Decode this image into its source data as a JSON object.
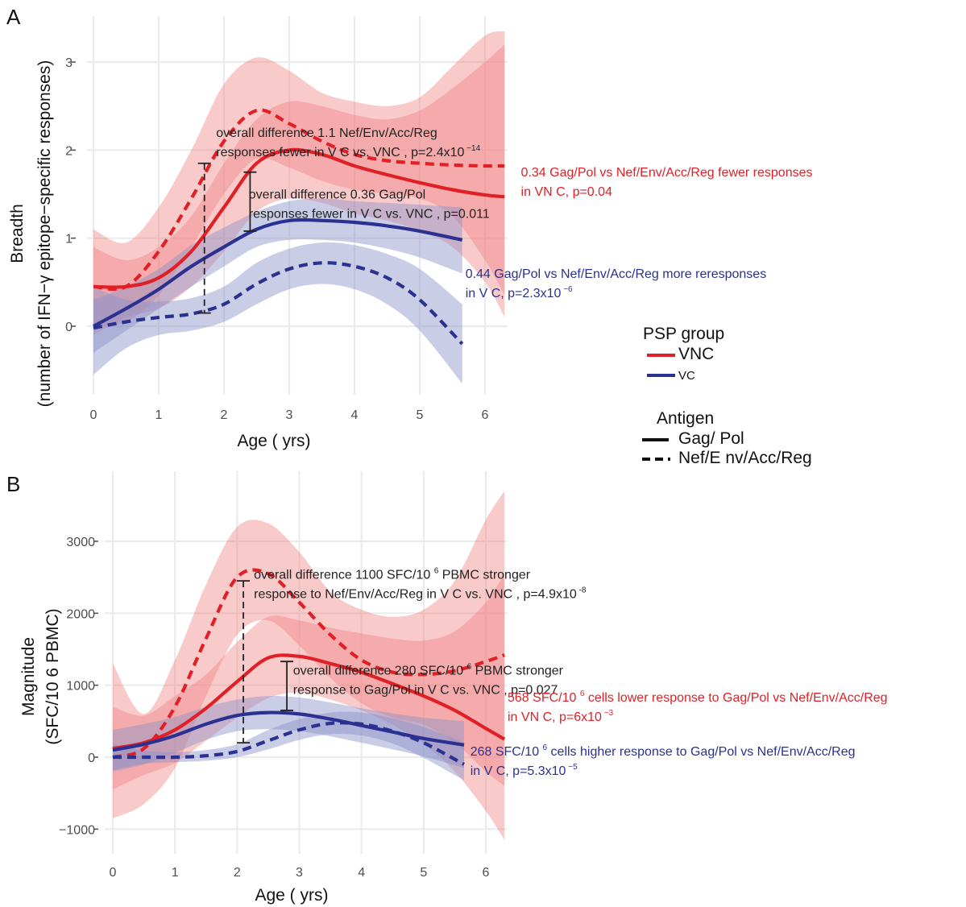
{
  "panel_labels": {
    "a": "A",
    "b": "B"
  },
  "colors": {
    "vnc": "#e01f26",
    "vc": "#2b3190",
    "vnc_band": "#f08080",
    "vc_band": "#8a90c8",
    "grid": "#ebebeb",
    "axis_text": "#4d4d4d",
    "bracket": "#222222"
  },
  "legend": {
    "group_title": "PSP group",
    "group_items": [
      {
        "label": "VNC",
        "color": "#e01f26"
      },
      {
        "label": "VC",
        "color": "#2b3190"
      }
    ],
    "antigen_title": "Antigen",
    "antigen_items": [
      {
        "label": "Gag/ Pol",
        "dash": "solid"
      },
      {
        "label": "Nef/E nv/Acc/Reg",
        "dash": "dashed"
      }
    ]
  },
  "chart_data": [
    {
      "type": "line",
      "panel": "A",
      "xlabel": "Age ( yrs)",
      "ylabel": [
        "Breadth",
        "(number of IFN−γ epitope−specific responses)"
      ],
      "xlim": [
        -0.1,
        6.3
      ],
      "ylim": [
        -0.8,
        3.4
      ],
      "x_ticks": [
        0,
        1,
        2,
        3,
        4,
        5,
        6
      ],
      "y_ticks": [
        0,
        1,
        2,
        3
      ],
      "grid": true,
      "series": [
        {
          "name": "VNC",
          "antigen": "Gag/Pol",
          "color": "#e01f26",
          "dash": "solid",
          "x": [
            0,
            0.5,
            1,
            1.5,
            2,
            2.5,
            3,
            3.5,
            4,
            4.5,
            5,
            5.5,
            6,
            6.3
          ],
          "y": [
            0.45,
            0.45,
            0.55,
            0.85,
            1.35,
            1.85,
            2.0,
            1.95,
            1.82,
            1.72,
            1.63,
            1.55,
            1.49,
            1.47
          ],
          "band_lower": [
            -0.1,
            0.1,
            0.2,
            0.45,
            0.85,
            1.3,
            1.45,
            1.4,
            1.28,
            1.2,
            1.08,
            0.9,
            0.5,
            0.1
          ],
          "band_upper": [
            0.9,
            0.75,
            0.9,
            1.25,
            1.85,
            2.35,
            2.55,
            2.5,
            2.4,
            2.35,
            2.45,
            2.7,
            3.0,
            3.2
          ]
        },
        {
          "name": "VNC",
          "antigen": "Nef/Env/Acc/Reg",
          "color": "#e01f26",
          "dash": "dashed",
          "x": [
            0,
            0.5,
            1,
            1.5,
            2,
            2.5,
            3,
            3.5,
            4,
            4.5,
            5,
            5.5,
            6,
            6.3
          ],
          "y": [
            0.45,
            0.45,
            0.85,
            1.45,
            2.1,
            2.45,
            2.3,
            2.1,
            1.95,
            1.88,
            1.85,
            1.83,
            1.82,
            1.82
          ],
          "band_lower": [
            0.0,
            0.05,
            0.35,
            0.9,
            1.5,
            1.9,
            1.8,
            1.65,
            1.55,
            1.5,
            1.45,
            1.25,
            0.75,
            0.35
          ],
          "band_upper": [
            1.1,
            0.95,
            1.35,
            2.0,
            2.75,
            3.05,
            2.9,
            2.65,
            2.55,
            2.5,
            2.6,
            2.95,
            3.3,
            3.35
          ]
        },
        {
          "name": "VC",
          "antigen": "Gag/Pol",
          "color": "#2b3190",
          "dash": "solid",
          "x": [
            0,
            0.5,
            1,
            1.5,
            2,
            2.5,
            3,
            3.5,
            4,
            4.5,
            5,
            5.65
          ],
          "y": [
            0.0,
            0.2,
            0.42,
            0.68,
            0.9,
            1.1,
            1.2,
            1.2,
            1.18,
            1.14,
            1.08,
            0.98
          ],
          "band_lower": [
            -0.3,
            -0.05,
            0.2,
            0.45,
            0.68,
            0.9,
            0.98,
            0.98,
            0.95,
            0.88,
            0.78,
            0.6
          ],
          "band_upper": [
            0.3,
            0.45,
            0.65,
            0.92,
            1.12,
            1.3,
            1.42,
            1.45,
            1.42,
            1.4,
            1.38,
            1.35
          ]
        },
        {
          "name": "VC",
          "antigen": "Nef/Env/Acc/Reg",
          "color": "#2b3190",
          "dash": "dashed",
          "x": [
            0,
            0.5,
            1,
            1.5,
            2,
            2.5,
            3,
            3.5,
            4,
            4.5,
            5,
            5.65
          ],
          "y": [
            -0.02,
            0.05,
            0.1,
            0.14,
            0.25,
            0.48,
            0.65,
            0.72,
            0.68,
            0.55,
            0.3,
            -0.2
          ],
          "band_lower": [
            -0.55,
            -0.25,
            -0.1,
            -0.05,
            0.05,
            0.25,
            0.42,
            0.48,
            0.42,
            0.25,
            -0.05,
            -0.65
          ],
          "band_upper": [
            0.45,
            0.3,
            0.28,
            0.32,
            0.45,
            0.72,
            0.88,
            0.95,
            0.92,
            0.82,
            0.65,
            0.25
          ]
        }
      ],
      "brackets": [
        {
          "x": 1.7,
          "y_low": 0.15,
          "y_high": 1.85,
          "dash": "dashed"
        },
        {
          "x": 2.4,
          "y_low": 1.08,
          "y_high": 1.75,
          "dash": "solid"
        }
      ],
      "annotations": [
        {
          "lines": [
            [
              "overall difference 1.1 Nef/Env/Acc/Reg",
              ""
            ],
            [
              "responses   fewer in V C vs. VNC    , p=2.4x10",
              " −14"
            ]
          ],
          "color": "#222222",
          "x": 1.88,
          "y": 2.15
        },
        {
          "lines": [
            [
              "overall difference 0.36    Gag/Pol",
              ""
            ],
            [
              "responses   fewer in V C vs. VNC    , p=0.011",
              ""
            ]
          ],
          "color": "#222222",
          "x": 2.38,
          "y": 1.45
        },
        {
          "lines": [
            [
              "0.34 Gag/Pol vs Nef/Env/Acc/Reg         fewer  responses",
              ""
            ],
            [
              "in VN C, p=0.04",
              ""
            ]
          ],
          "color": "#e01f26",
          "x": 6.55,
          "y": 1.7
        },
        {
          "lines": [
            [
              "0.44 Gag/Pol vs Nef/Env/Acc/Reg         more  reresponses",
              ""
            ],
            [
              "in V C, p=2.3x10",
              "  −6"
            ]
          ],
          "color": "#2b3190",
          "x": 5.7,
          "y": 0.55
        }
      ]
    },
    {
      "type": "line",
      "panel": "B",
      "xlabel": "Age ( yrs)",
      "ylabel": [
        "Magnitude",
        "(SFC/10  6 PBMC)"
      ],
      "xlim": [
        -0.1,
        6.3
      ],
      "ylim": [
        -1250,
        3700
      ],
      "x_ticks": [
        0,
        1,
        2,
        3,
        4,
        5,
        6
      ],
      "y_ticks": [
        -1000,
        0,
        1000,
        2000,
        3000
      ],
      "grid": true,
      "series": [
        {
          "name": "VNC",
          "antigen": "Gag/Pol",
          "color": "#e01f26",
          "dash": "solid",
          "x": [
            0,
            0.5,
            1,
            1.5,
            2,
            2.5,
            3,
            3.5,
            4,
            4.5,
            5,
            5.5,
            6,
            6.3
          ],
          "y": [
            120,
            200,
            380,
            680,
            1050,
            1380,
            1400,
            1300,
            1180,
            1020,
            850,
            650,
            400,
            250
          ],
          "band_lower": [
            -450,
            -250,
            -80,
            230,
            550,
            820,
            900,
            800,
            650,
            450,
            180,
            -200,
            -750,
            -1150
          ],
          "band_upper": [
            700,
            580,
            850,
            1150,
            1600,
            1950,
            1900,
            1800,
            1720,
            1650,
            1620,
            1750,
            2150,
            2550
          ]
        },
        {
          "name": "VNC",
          "antigen": "Nef/Env/Acc/Reg",
          "color": "#e01f26",
          "dash": "dashed",
          "x": [
            0,
            0.5,
            1,
            1.5,
            2,
            2.5,
            3,
            3.5,
            4,
            4.5,
            5,
            5.5,
            6,
            6.3
          ],
          "y": [
            0,
            120,
            700,
            1650,
            2500,
            2550,
            2150,
            1700,
            1350,
            1180,
            1150,
            1200,
            1330,
            1420
          ],
          "band_lower": [
            -850,
            -650,
            -150,
            850,
            1700,
            1900,
            1550,
            1100,
            750,
            550,
            450,
            200,
            -200,
            -400
          ],
          "band_upper": [
            1300,
            600,
            1350,
            2400,
            3200,
            3250,
            2850,
            2300,
            2050,
            1950,
            2050,
            2450,
            3300,
            3700
          ]
        },
        {
          "name": "VC",
          "antigen": "Gag/Pol",
          "color": "#2b3190",
          "dash": "solid",
          "x": [
            0,
            0.5,
            1,
            1.5,
            2,
            2.5,
            3,
            3.5,
            4,
            4.5,
            5,
            5.65
          ],
          "y": [
            100,
            180,
            300,
            460,
            580,
            620,
            600,
            530,
            440,
            350,
            260,
            170
          ],
          "band_lower": [
            -200,
            -100,
            60,
            240,
            360,
            390,
            360,
            290,
            200,
            110,
            10,
            -150
          ],
          "band_upper": [
            380,
            460,
            560,
            700,
            800,
            850,
            830,
            760,
            680,
            610,
            550,
            500
          ]
        },
        {
          "name": "VC",
          "antigen": "Nef/Env/Acc/Reg",
          "color": "#2b3190",
          "dash": "dashed",
          "x": [
            0,
            0.5,
            1,
            1.5,
            2,
            2.5,
            3,
            3.5,
            4,
            4.5,
            5,
            5.65
          ],
          "y": [
            0,
            0,
            0,
            20,
            80,
            230,
            380,
            470,
            460,
            360,
            200,
            -100
          ],
          "band_lower": [
            -180,
            -90,
            -70,
            -50,
            0,
            110,
            240,
            320,
            300,
            190,
            -10,
            -320
          ],
          "band_upper": [
            180,
            90,
            70,
            100,
            180,
            380,
            530,
            620,
            620,
            540,
            420,
            200
          ]
        }
      ],
      "brackets": [
        {
          "x": 2.1,
          "y_low": 200,
          "y_high": 2450,
          "dash": "dashed"
        },
        {
          "x": 2.8,
          "y_low": 650,
          "y_high": 1330,
          "dash": "solid"
        }
      ],
      "annotations": [
        {
          "lines": [
            [
              "overall difference 1100 SFC/10      ",
              "6",
              " PBMC stronger"
            ],
            [
              "response to Nef/Env/Acc/Reg in V      C vs. VNC     , p=4.9x10",
              " -8"
            ]
          ],
          "color": "#222222",
          "x": 2.27,
          "y": 2480
        },
        {
          "lines": [
            [
              "overall difference 280 SFC/10      ",
              "6",
              " PBMC stronger"
            ],
            [
              "response to Gag/Pol in V   C vs. VNC    , p=0.027",
              ""
            ]
          ],
          "color": "#222222",
          "x": 2.9,
          "y": 1150
        },
        {
          "lines": [
            [
              "568 SFC/10   ",
              "6",
              " cells    lower  response to Gag/Pol vs Nef/Env/Acc/Reg"
            ],
            [
              "in VN C, p=6x10",
              "  −3"
            ]
          ],
          "color": "#e01f26",
          "x": 6.35,
          "y": 770
        },
        {
          "lines": [
            [
              "268 SFC/10   ",
              "6",
              " cells    higher  response to Gag/Pol vs Nef/Env/Acc/Reg"
            ],
            [
              "in V C, p=5.3x10",
              "  −5"
            ]
          ],
          "color": "#2b3190",
          "x": 5.75,
          "y": 20
        }
      ]
    }
  ]
}
